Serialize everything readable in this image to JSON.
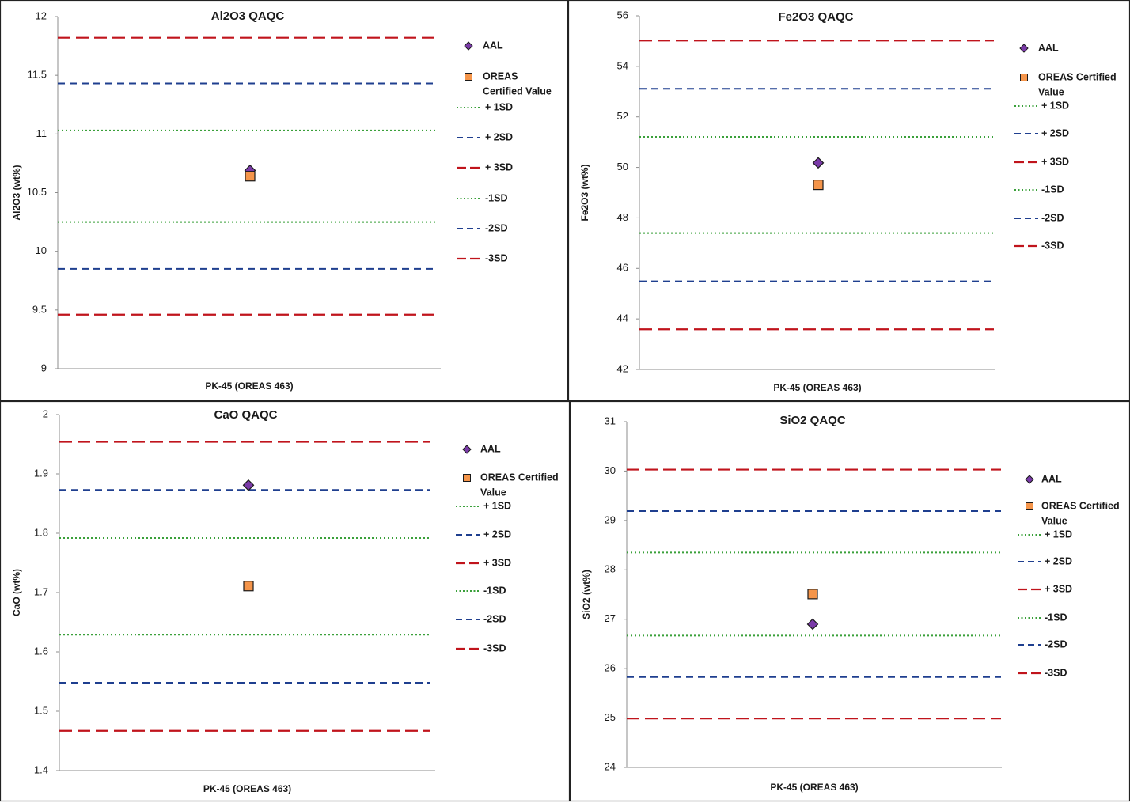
{
  "colors": {
    "sd1": "#3aa03a",
    "sd2": "#1f3f8f",
    "sd3": "#c0141c",
    "aal": "#7a3aa8",
    "oreas": "#f5954a",
    "axis": "#8c8c8c",
    "border": "#222222"
  },
  "chart_data": [
    {
      "type": "scatter",
      "title": "Al2O3 QAQC",
      "xlabel": "PK-45 (OREAS 463)",
      "ylabel": "Al2O3 (wt%)",
      "ylim": [
        9,
        12
      ],
      "yticks": [
        "9",
        "9.5",
        "10",
        "10.5",
        "11",
        "11.5",
        "12"
      ],
      "grid": false,
      "legend_position": "right",
      "points": [
        {
          "series": "AAL",
          "y": 10.69
        },
        {
          "series": "OREAS Certified Value",
          "y": 10.64
        }
      ],
      "reference_lines": [
        {
          "label": "+ 1SD",
          "y": 11.03
        },
        {
          "label": "+ 2SD",
          "y": 11.43
        },
        {
          "label": "+ 3SD",
          "y": 11.82
        },
        {
          "label": "-1SD",
          "y": 10.25
        },
        {
          "label": "-2SD",
          "y": 9.85
        },
        {
          "label": "-3SD",
          "y": 9.46
        }
      ]
    },
    {
      "type": "scatter",
      "title": "Fe2O3 QAQC",
      "xlabel": "PK-45 (OREAS 463)",
      "ylabel": "Fe2O3 (wt%)",
      "ylim": [
        42,
        56
      ],
      "yticks": [
        "42",
        "44",
        "46",
        "48",
        "50",
        "52",
        "54",
        "56"
      ],
      "grid": false,
      "legend_position": "right",
      "points": [
        {
          "series": "AAL",
          "y": 50.18
        },
        {
          "series": "OREAS Certified Value",
          "y": 49.31
        }
      ],
      "reference_lines": [
        {
          "label": "+ 1SD",
          "y": 51.21
        },
        {
          "label": "+ 2SD",
          "y": 53.11
        },
        {
          "label": "+ 3SD",
          "y": 55.02
        },
        {
          "label": "-1SD",
          "y": 47.4
        },
        {
          "label": "-2SD",
          "y": 45.49
        },
        {
          "label": "-3SD",
          "y": 43.59
        }
      ]
    },
    {
      "type": "scatter",
      "title": "CaO QAQC",
      "xlabel": "PK-45 (OREAS 463)",
      "ylabel": "CaO (wt%)",
      "ylim": [
        1.4,
        2
      ],
      "yticks": [
        "1.4",
        "1.5",
        "1.6",
        "1.7",
        "1.8",
        "1.9",
        "2"
      ],
      "grid": false,
      "legend_position": "right",
      "points": [
        {
          "series": "AAL",
          "y": 1.881
        },
        {
          "series": "OREAS Certified Value",
          "y": 1.711
        }
      ],
      "reference_lines": [
        {
          "label": "+ 1SD",
          "y": 1.792
        },
        {
          "label": "+ 2SD",
          "y": 1.873
        },
        {
          "label": "+ 3SD",
          "y": 1.954
        },
        {
          "label": "-1SD",
          "y": 1.629
        },
        {
          "label": "-2SD",
          "y": 1.548
        },
        {
          "label": "-3SD",
          "y": 1.467
        }
      ]
    },
    {
      "type": "scatter",
      "title": "SiO2 QAQC",
      "xlabel": "PK-45 (OREAS 463)",
      "ylabel": "SiO2 (wt%)",
      "ylim": [
        24,
        31
      ],
      "yticks": [
        "24",
        "25",
        "26",
        "27",
        "28",
        "29",
        "30",
        "31"
      ],
      "grid": false,
      "legend_position": "right",
      "points": [
        {
          "series": "AAL",
          "y": 26.9
        },
        {
          "series": "OREAS Certified Value",
          "y": 27.51
        }
      ],
      "reference_lines": [
        {
          "label": "+ 1SD",
          "y": 28.35
        },
        {
          "label": "+ 2SD",
          "y": 29.19
        },
        {
          "label": "+ 3SD",
          "y": 30.03
        },
        {
          "label": "-1SD",
          "y": 26.67
        },
        {
          "label": "-2SD",
          "y": 25.83
        },
        {
          "label": "-3SD",
          "y": 24.99
        }
      ]
    }
  ],
  "legend": {
    "aal": "AAL",
    "oreas_line1": "OREAS Certified",
    "oreas_line1_split": "OREAS",
    "oreas_line2": "Value",
    "oreas_line2_split": "Certified Value"
  }
}
